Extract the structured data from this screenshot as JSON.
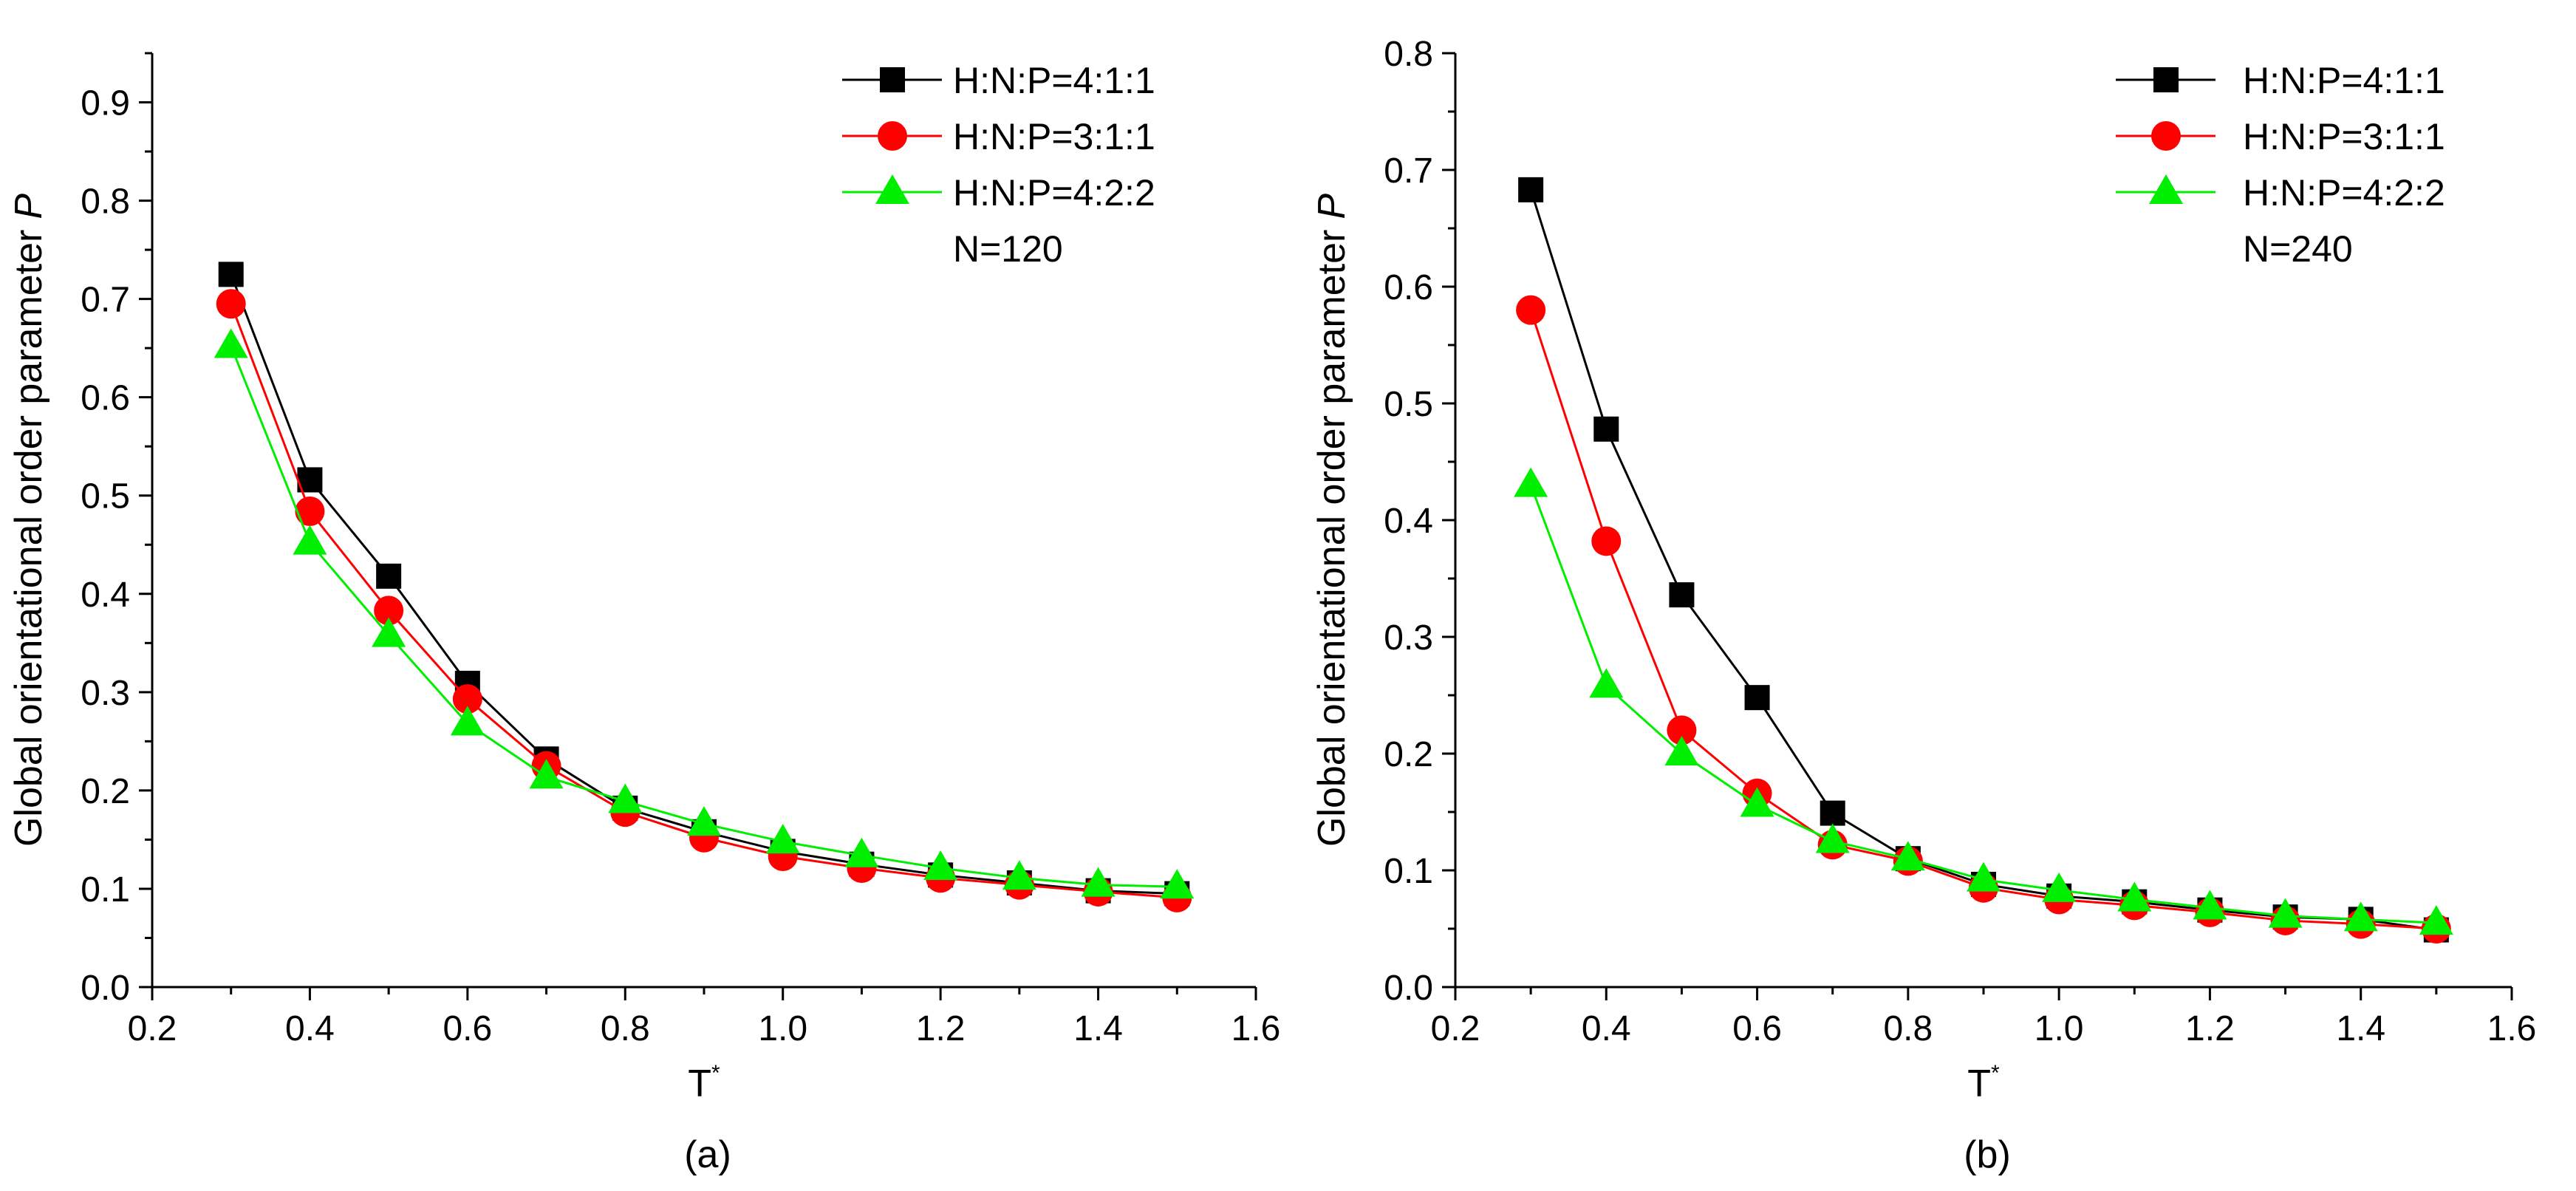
{
  "chart_data": [
    {
      "type": "line",
      "panel_label": "(a)",
      "xlabel": "T",
      "xlabel_superscript": "*",
      "ylabel": "Global orientational order parameter",
      "ylabel_symbol": "P",
      "xlim": [
        0.2,
        1.6
      ],
      "ylim": [
        0.0,
        0.95
      ],
      "xticks": [
        0.2,
        0.4,
        0.6,
        0.8,
        1.0,
        1.2,
        1.4,
        1.6
      ],
      "yticks": [
        0.0,
        0.1,
        0.2,
        0.3,
        0.4,
        0.5,
        0.6,
        0.7,
        0.8,
        0.9
      ],
      "x": [
        0.3,
        0.4,
        0.5,
        0.6,
        0.7,
        0.8,
        0.9,
        1.0,
        1.1,
        1.2,
        1.3,
        1.4,
        1.5
      ],
      "legend_note": "N=120",
      "series": [
        {
          "name": "H:N:P=4:1:1",
          "marker": "square",
          "color": "#000000",
          "values": [
            0.725,
            0.516,
            0.418,
            0.309,
            0.232,
            0.182,
            0.158,
            0.138,
            0.125,
            0.114,
            0.106,
            0.098,
            0.095
          ]
        },
        {
          "name": "H:N:P=3:1:1",
          "marker": "circle",
          "color": "#ff0000",
          "values": [
            0.695,
            0.484,
            0.383,
            0.293,
            0.225,
            0.178,
            0.152,
            0.133,
            0.121,
            0.111,
            0.104,
            0.097,
            0.091
          ]
        },
        {
          "name": "H:N:P=4:2:2",
          "marker": "triangle",
          "color": "#00ee00",
          "values": [
            0.652,
            0.452,
            0.358,
            0.268,
            0.214,
            0.189,
            0.166,
            0.148,
            0.134,
            0.121,
            0.111,
            0.104,
            0.102
          ]
        }
      ]
    },
    {
      "type": "line",
      "panel_label": "(b)",
      "xlabel": "T",
      "xlabel_superscript": "*",
      "ylabel": "Global orientational order parameter",
      "ylabel_symbol": "P",
      "xlim": [
        0.2,
        1.6
      ],
      "ylim": [
        0.0,
        0.8
      ],
      "xticks": [
        0.2,
        0.4,
        0.6,
        0.8,
        1.0,
        1.2,
        1.4,
        1.6
      ],
      "yticks": [
        0.0,
        0.1,
        0.2,
        0.3,
        0.4,
        0.5,
        0.6,
        0.7,
        0.8
      ],
      "x": [
        0.3,
        0.4,
        0.5,
        0.6,
        0.7,
        0.8,
        0.9,
        1.0,
        1.1,
        1.2,
        1.3,
        1.4,
        1.5
      ],
      "legend_note": "N=240",
      "series": [
        {
          "name": "H:N:P=4:1:1",
          "marker": "square",
          "color": "#000000",
          "values": [
            0.683,
            0.478,
            0.336,
            0.248,
            0.149,
            0.11,
            0.088,
            0.078,
            0.073,
            0.066,
            0.06,
            0.058,
            0.049
          ]
        },
        {
          "name": "H:N:P=3:1:1",
          "marker": "circle",
          "color": "#ff0000",
          "values": [
            0.58,
            0.382,
            0.22,
            0.166,
            0.122,
            0.108,
            0.085,
            0.075,
            0.07,
            0.064,
            0.057,
            0.054,
            0.05
          ]
        },
        {
          "name": "H:N:P=4:2:2",
          "marker": "triangle",
          "color": "#00ee00",
          "values": [
            0.43,
            0.258,
            0.2,
            0.156,
            0.125,
            0.11,
            0.092,
            0.083,
            0.075,
            0.068,
            0.061,
            0.058,
            0.055
          ]
        }
      ]
    }
  ]
}
